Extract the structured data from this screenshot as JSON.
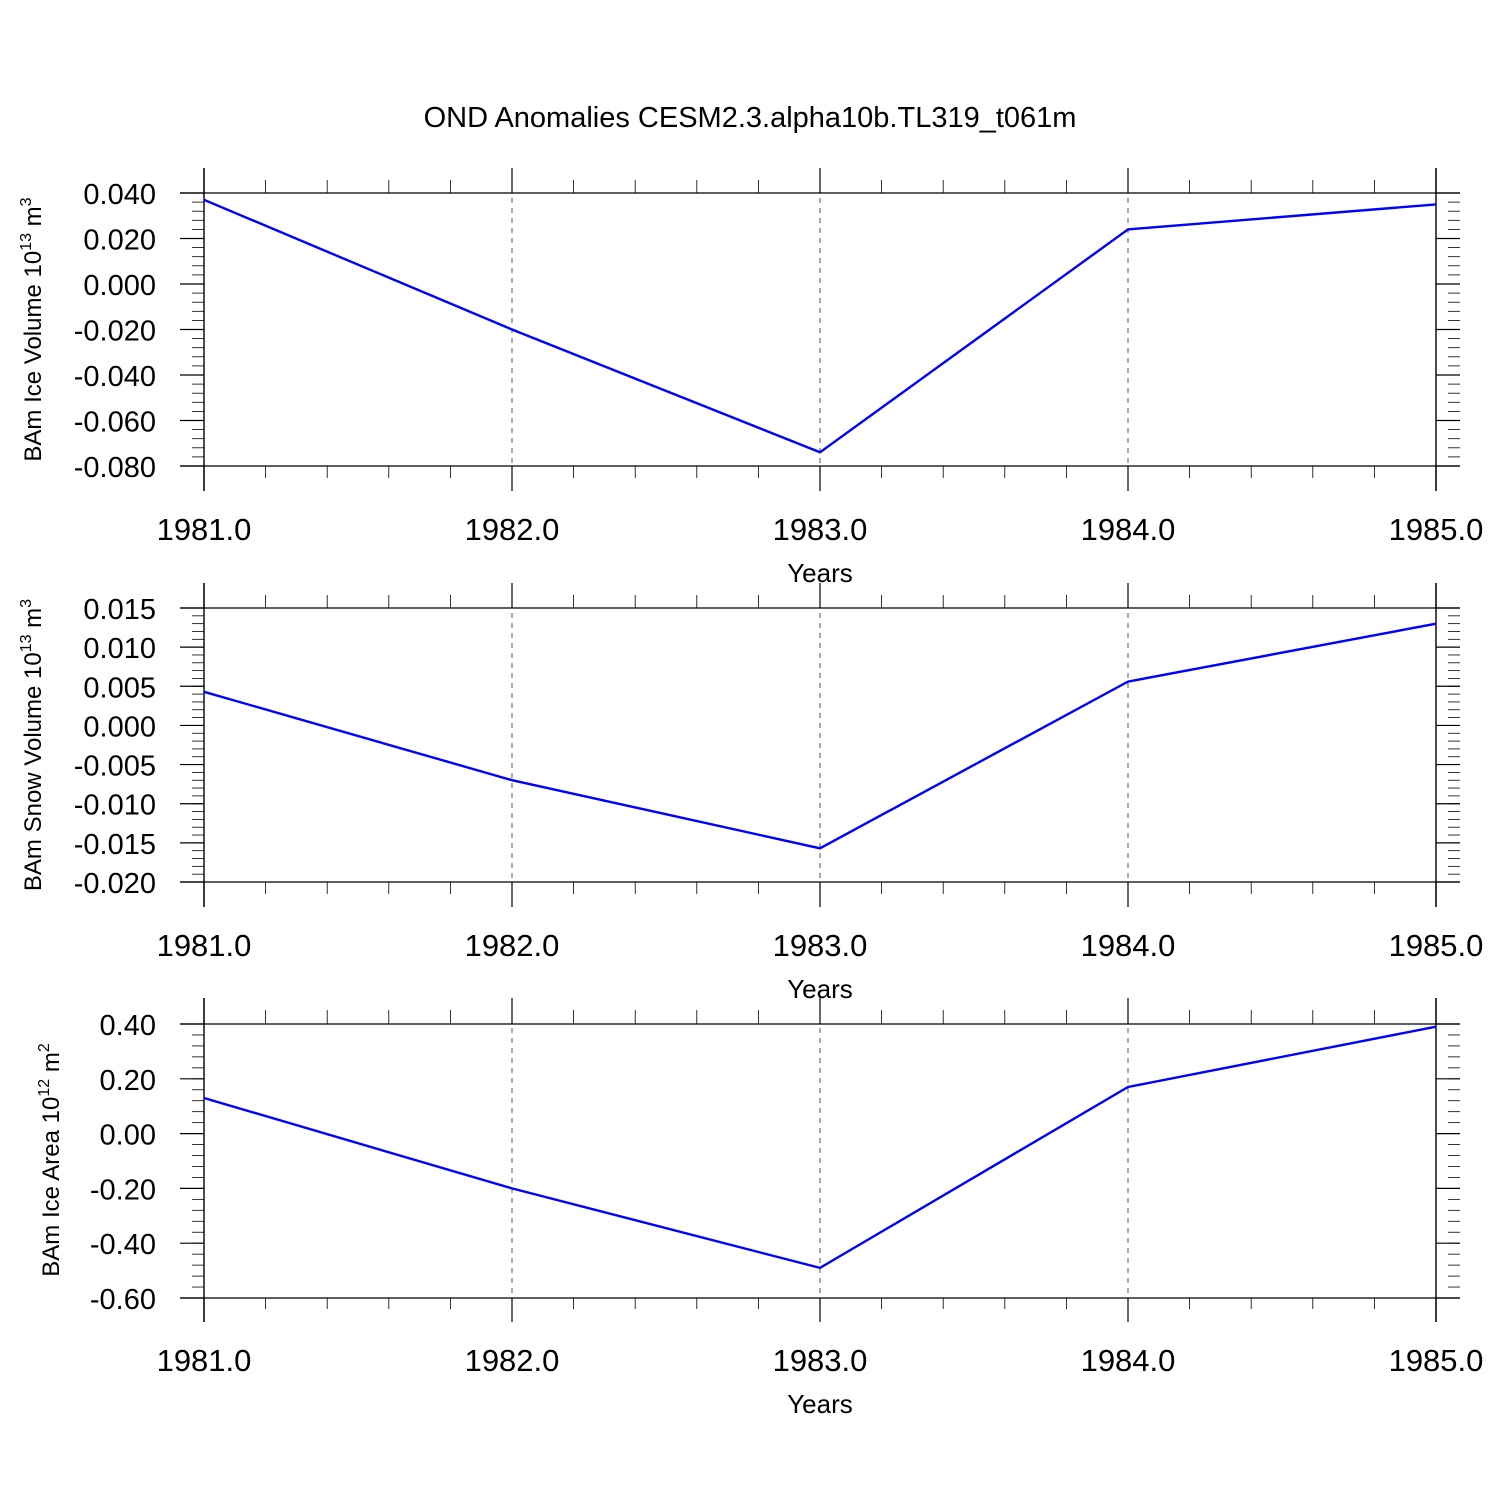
{
  "title": "OND Anomalies CESM2.3.alpha10b.TL319_t061m",
  "colors": {
    "line": "#0000ff",
    "axis": "#000000",
    "grid": "#555555"
  },
  "chart_data": [
    {
      "type": "line",
      "xlabel": "Years",
      "ylabel": {
        "text": "BAm Ice Volume 10",
        "exp": "13",
        "unit": " m",
        "unit_exp": "3"
      },
      "x": [
        1981.0,
        1982.0,
        1983.0,
        1984.0,
        1985.0
      ],
      "values": [
        0.037,
        -0.02,
        -0.074,
        0.024,
        0.035
      ],
      "xlim": [
        1981.0,
        1985.08
      ],
      "ylim": [
        -0.08,
        0.04
      ],
      "xticks": [
        "1981.0",
        "1982.0",
        "1983.0",
        "1984.0",
        "1985.0"
      ],
      "yticks": [
        "0.040",
        "0.020",
        "0.000",
        "-0.020",
        "-0.040",
        "-0.060",
        "-0.080"
      ],
      "ytick_values": [
        0.04,
        0.02,
        0.0,
        -0.02,
        -0.04,
        -0.06,
        -0.08
      ],
      "y_minor_step": 0.004,
      "grid": "vertical dashed at major x ticks"
    },
    {
      "type": "line",
      "xlabel": "Years",
      "ylabel": {
        "text": "BAm Snow Volume 10",
        "exp": "13",
        "unit": " m",
        "unit_exp": "3"
      },
      "x": [
        1981.0,
        1982.0,
        1983.0,
        1984.0,
        1985.0
      ],
      "values": [
        0.0043,
        -0.007,
        -0.0157,
        0.0056,
        0.013
      ],
      "xlim": [
        1981.0,
        1985.08
      ],
      "ylim": [
        -0.02,
        0.015
      ],
      "xticks": [
        "1981.0",
        "1982.0",
        "1983.0",
        "1984.0",
        "1985.0"
      ],
      "yticks": [
        "0.015",
        "0.010",
        "0.005",
        "0.000",
        "-0.005",
        "-0.010",
        "-0.015",
        "-0.020"
      ],
      "ytick_values": [
        0.015,
        0.01,
        0.005,
        0.0,
        -0.005,
        -0.01,
        -0.015,
        -0.02
      ],
      "y_minor_step": 0.001,
      "grid": "vertical dashed at major x ticks"
    },
    {
      "type": "line",
      "xlabel": "Years",
      "ylabel": {
        "text": "BAm Ice Area 10",
        "exp": "12",
        "unit": " m",
        "unit_exp": "2"
      },
      "x": [
        1981.0,
        1982.0,
        1983.0,
        1984.0,
        1985.0
      ],
      "values": [
        0.13,
        -0.2,
        -0.49,
        0.17,
        0.39
      ],
      "xlim": [
        1981.0,
        1985.08
      ],
      "ylim": [
        -0.6,
        0.4
      ],
      "xticks": [
        "1981.0",
        "1982.0",
        "1983.0",
        "1984.0",
        "1985.0"
      ],
      "yticks": [
        "0.40",
        "0.20",
        "0.00",
        "-0.20",
        "-0.40",
        "-0.60"
      ],
      "ytick_values": [
        0.4,
        0.2,
        0.0,
        -0.2,
        -0.4,
        -0.6
      ],
      "y_minor_step": 0.04,
      "grid": "vertical dashed at major x ticks"
    }
  ]
}
